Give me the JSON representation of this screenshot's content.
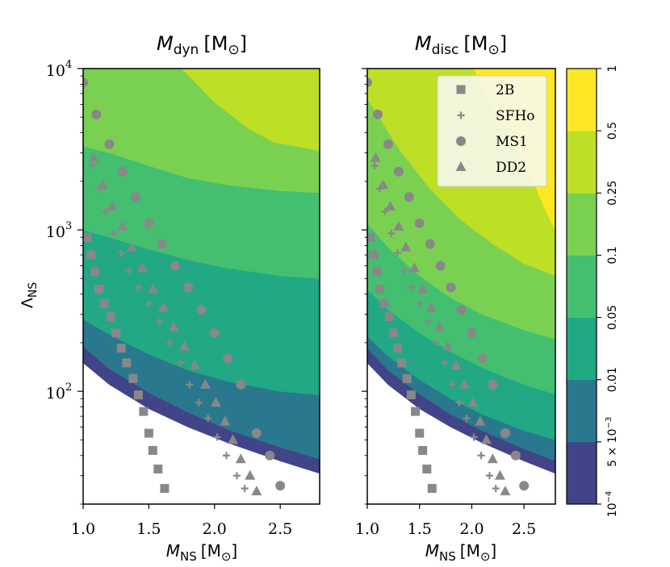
{
  "figure": {
    "panel_titles": [
      {
        "symbol": "M",
        "sub": "dyn",
        "unit": "[M",
        "sun": "⊙",
        "close": "]"
      },
      {
        "symbol": "M",
        "sub": "disc",
        "unit": "[M",
        "sun": "⊙",
        "close": "]"
      }
    ],
    "ylabel": {
      "symbol": "Λ",
      "sub": "NS"
    },
    "xlabel": {
      "symbol": "M",
      "sub": "NS",
      "unit": "[M",
      "sun": "⊙",
      "close": "]"
    },
    "colorbar": {
      "ticks": [
        "10",
        "5 × 10",
        "0.01",
        "0.05",
        "0.1",
        "0.25",
        "0.5",
        "1"
      ],
      "tick_superscripts": {
        "0": "−4",
        "1": "−3"
      },
      "level_colors": [
        "#414487",
        "#2a788e",
        "#22a884",
        "#44bf70",
        "#7ad151",
        "#bddf26",
        "#fde725"
      ]
    }
  },
  "chart_data": [
    {
      "type": "contourf",
      "title": "M_dyn [M_sun]",
      "xlabel": "M_NS [M_sun]",
      "ylabel": "Λ_NS",
      "xlim": [
        1.0,
        2.8
      ],
      "ylim": [
        20,
        10000
      ],
      "yscale": "log",
      "xticks": [
        "1.0",
        "1.5",
        "2.0",
        "2.5"
      ],
      "yticks": [
        {
          "base": "10",
          "exp": "2"
        },
        {
          "base": "10",
          "exp": "3"
        },
        {
          "base": "10",
          "exp": "4"
        }
      ],
      "levels": [
        0.0001,
        0.005,
        0.01,
        0.05,
        0.1,
        0.25,
        0.5,
        1
      ],
      "boundaries": [
        {
          "level": 0.0001,
          "points": [
            [
              1.0,
              150
            ],
            [
              1.2,
              110
            ],
            [
              1.5,
              78
            ],
            [
              1.8,
              60
            ],
            [
              2.1,
              48
            ],
            [
              2.5,
              37
            ],
            [
              2.8,
              31
            ]
          ]
        },
        {
          "level": 0.005,
          "points": [
            [
              1.0,
              190
            ],
            [
              1.2,
              138
            ],
            [
              1.5,
              98
            ],
            [
              1.8,
              74
            ],
            [
              2.1,
              58
            ],
            [
              2.5,
              45
            ],
            [
              2.8,
              38
            ]
          ]
        },
        {
          "level": 0.01,
          "points": [
            [
              1.0,
              280
            ],
            [
              1.2,
              225
            ],
            [
              1.5,
              170
            ],
            [
              1.8,
              135
            ],
            [
              2.1,
              115
            ],
            [
              2.5,
              100
            ],
            [
              2.8,
              95
            ]
          ]
        },
        {
          "level": 0.05,
          "points": [
            [
              1.0,
              1000
            ],
            [
              1.2,
              900
            ],
            [
              1.5,
              760
            ],
            [
              1.8,
              650
            ],
            [
              2.1,
              580
            ],
            [
              2.5,
              520
            ],
            [
              2.8,
              500
            ]
          ]
        },
        {
          "level": 0.1,
          "points": [
            [
              1.0,
              3300
            ],
            [
              1.2,
              3000
            ],
            [
              1.5,
              2500
            ],
            [
              1.8,
              2100
            ],
            [
              2.1,
              1900
            ],
            [
              2.5,
              1750
            ],
            [
              2.8,
              1700
            ]
          ]
        },
        {
          "level": 0.25,
          "points": [
            [
              1.75,
              10000
            ],
            [
              2.0,
              6200
            ],
            [
              2.25,
              4300
            ],
            [
              2.45,
              3500
            ],
            [
              2.8,
              3100
            ]
          ]
        }
      ],
      "series": [
        {
          "name": "2B",
          "marker": "square",
          "points": [
            [
              1.03,
              900
            ],
            [
              1.06,
              700
            ],
            [
              1.09,
              550
            ],
            [
              1.12,
              430
            ],
            [
              1.16,
              350
            ],
            [
              1.21,
              290
            ],
            [
              1.25,
              230
            ],
            [
              1.29,
              185
            ],
            [
              1.33,
              150
            ],
            [
              1.38,
              120
            ],
            [
              1.42,
              95
            ],
            [
              1.46,
              75
            ],
            [
              1.5,
              55
            ],
            [
              1.53,
              43
            ],
            [
              1.57,
              33
            ],
            [
              1.62,
              25
            ]
          ]
        },
        {
          "name": "SFHo",
          "marker": "plus",
          "points": [
            [
              1.07,
              2500
            ],
            [
              1.12,
              1800
            ],
            [
              1.17,
              1300
            ],
            [
              1.23,
              950
            ],
            [
              1.29,
              720
            ],
            [
              1.35,
              560
            ],
            [
              1.42,
              440
            ],
            [
              1.5,
              350
            ],
            [
              1.58,
              270
            ],
            [
              1.66,
              200
            ],
            [
              1.74,
              150
            ],
            [
              1.81,
              110
            ],
            [
              1.88,
              85
            ],
            [
              1.95,
              68
            ],
            [
              2.02,
              52
            ],
            [
              2.09,
              40
            ],
            [
              2.17,
              30
            ],
            [
              2.23,
              25
            ]
          ]
        },
        {
          "name": "MS1",
          "marker": "circle",
          "points": [
            [
              1.0,
              8200
            ],
            [
              1.1,
              5200
            ],
            [
              1.2,
              3400
            ],
            [
              1.3,
              2300
            ],
            [
              1.4,
              1600
            ],
            [
              1.5,
              1100
            ],
            [
              1.6,
              820
            ],
            [
              1.7,
              600
            ],
            [
              1.8,
              440
            ],
            [
              1.9,
              320
            ],
            [
              2.0,
              230
            ],
            [
              2.1,
              160
            ],
            [
              2.2,
              110
            ],
            [
              2.32,
              55
            ],
            [
              2.42,
              40
            ],
            [
              2.5,
              26
            ]
          ]
        },
        {
          "name": "DD2",
          "marker": "triangle",
          "points": [
            [
              1.08,
              2800
            ],
            [
              1.15,
              1900
            ],
            [
              1.22,
              1400
            ],
            [
              1.3,
              1050
            ],
            [
              1.37,
              780
            ],
            [
              1.45,
              580
            ],
            [
              1.53,
              430
            ],
            [
              1.61,
              330
            ],
            [
              1.69,
              250
            ],
            [
              1.77,
              190
            ],
            [
              1.85,
              145
            ],
            [
              1.93,
              110
            ],
            [
              2.01,
              85
            ],
            [
              2.08,
              65
            ],
            [
              2.14,
              50
            ],
            [
              2.2,
              38
            ],
            [
              2.27,
              30
            ],
            [
              2.32,
              24
            ]
          ]
        }
      ]
    },
    {
      "type": "contourf",
      "title": "M_disc [M_sun]",
      "xlabel": "M_NS [M_sun]",
      "xlim": [
        1.0,
        2.8
      ],
      "ylim": [
        20,
        10000
      ],
      "yscale": "log",
      "xticks": [
        "1.0",
        "1.5",
        "2.0",
        "2.5"
      ],
      "levels": [
        0.0001,
        0.005,
        0.01,
        0.05,
        0.1,
        0.25,
        0.5,
        1
      ],
      "legend": {
        "position": "top-right",
        "entries": [
          "2B",
          "SFHo",
          "MS1",
          "DD2"
        ]
      },
      "boundaries": [
        {
          "level": 0.0001,
          "points": [
            [
              1.0,
              150
            ],
            [
              1.2,
              110
            ],
            [
              1.5,
              78
            ],
            [
              1.8,
              60
            ],
            [
              2.1,
              48
            ],
            [
              2.5,
              37
            ],
            [
              2.8,
              31
            ]
          ]
        },
        {
          "level": 0.005,
          "points": [
            [
              1.0,
              185
            ],
            [
              1.2,
              135
            ],
            [
              1.5,
              96
            ],
            [
              1.8,
              72
            ],
            [
              2.1,
              57
            ],
            [
              2.5,
              44
            ],
            [
              2.8,
              37
            ]
          ]
        },
        {
          "level": 0.01,
          "points": [
            [
              1.0,
              220
            ],
            [
              1.2,
              165
            ],
            [
              1.5,
              118
            ],
            [
              1.8,
              90
            ],
            [
              2.1,
              72
            ],
            [
              2.5,
              57
            ],
            [
              2.8,
              50
            ]
          ]
        },
        {
          "level": 0.05,
          "points": [
            [
              1.0,
              430
            ],
            [
              1.2,
              320
            ],
            [
              1.5,
              230
            ],
            [
              1.8,
              175
            ],
            [
              2.1,
              140
            ],
            [
              2.5,
              110
            ],
            [
              2.8,
              96
            ]
          ]
        },
        {
          "level": 0.1,
          "points": [
            [
              1.0,
              1100
            ],
            [
              1.2,
              780
            ],
            [
              1.5,
              520
            ],
            [
              1.8,
              380
            ],
            [
              2.1,
              300
            ],
            [
              2.5,
              240
            ],
            [
              2.8,
              210
            ]
          ]
        },
        {
          "level": 0.25,
          "points": [
            [
              1.0,
              6500
            ],
            [
              1.1,
              5200
            ],
            [
              1.3,
              3200
            ],
            [
              1.6,
              1800
            ],
            [
              1.9,
              1150
            ],
            [
              2.2,
              820
            ],
            [
              2.5,
              620
            ],
            [
              2.8,
              520
            ]
          ]
        },
        {
          "level": 0.5,
          "points": [
            [
              2.02,
              10000
            ],
            [
              2.15,
              6500
            ],
            [
              2.35,
              4000
            ],
            [
              2.55,
              2300
            ],
            [
              2.7,
              1350
            ],
            [
              2.8,
              1000
            ]
          ]
        }
      ],
      "series": [
        {
          "name": "2B",
          "marker": "square",
          "points": [
            [
              1.03,
              900
            ],
            [
              1.06,
              700
            ],
            [
              1.09,
              550
            ],
            [
              1.12,
              430
            ],
            [
              1.16,
              350
            ],
            [
              1.21,
              290
            ],
            [
              1.25,
              230
            ],
            [
              1.29,
              185
            ],
            [
              1.33,
              150
            ],
            [
              1.38,
              120
            ],
            [
              1.42,
              95
            ],
            [
              1.46,
              75
            ],
            [
              1.5,
              55
            ],
            [
              1.53,
              43
            ],
            [
              1.57,
              33
            ],
            [
              1.62,
              25
            ]
          ]
        },
        {
          "name": "SFHo",
          "marker": "plus",
          "points": [
            [
              1.07,
              2500
            ],
            [
              1.12,
              1800
            ],
            [
              1.17,
              1300
            ],
            [
              1.23,
              950
            ],
            [
              1.29,
              720
            ],
            [
              1.35,
              560
            ],
            [
              1.42,
              440
            ],
            [
              1.5,
              350
            ],
            [
              1.58,
              270
            ],
            [
              1.66,
              200
            ],
            [
              1.74,
              150
            ],
            [
              1.81,
              110
            ],
            [
              1.88,
              85
            ],
            [
              1.95,
              68
            ],
            [
              2.02,
              52
            ],
            [
              2.09,
              40
            ],
            [
              2.17,
              30
            ],
            [
              2.23,
              25
            ]
          ]
        },
        {
          "name": "MS1",
          "marker": "circle",
          "points": [
            [
              1.0,
              8200
            ],
            [
              1.1,
              5200
            ],
            [
              1.2,
              3400
            ],
            [
              1.3,
              2300
            ],
            [
              1.4,
              1600
            ],
            [
              1.5,
              1100
            ],
            [
              1.6,
              820
            ],
            [
              1.7,
              600
            ],
            [
              1.8,
              440
            ],
            [
              1.9,
              320
            ],
            [
              2.0,
              230
            ],
            [
              2.1,
              160
            ],
            [
              2.2,
              110
            ],
            [
              2.32,
              55
            ],
            [
              2.42,
              40
            ],
            [
              2.5,
              26
            ]
          ]
        },
        {
          "name": "DD2",
          "marker": "triangle",
          "points": [
            [
              1.08,
              2800
            ],
            [
              1.15,
              1900
            ],
            [
              1.22,
              1400
            ],
            [
              1.3,
              1050
            ],
            [
              1.37,
              780
            ],
            [
              1.45,
              580
            ],
            [
              1.53,
              430
            ],
            [
              1.61,
              330
            ],
            [
              1.69,
              250
            ],
            [
              1.77,
              190
            ],
            [
              1.85,
              145
            ],
            [
              1.93,
              110
            ],
            [
              2.01,
              85
            ],
            [
              2.08,
              65
            ],
            [
              2.14,
              50
            ],
            [
              2.2,
              38
            ],
            [
              2.27,
              30
            ],
            [
              2.32,
              24
            ]
          ]
        }
      ]
    }
  ]
}
